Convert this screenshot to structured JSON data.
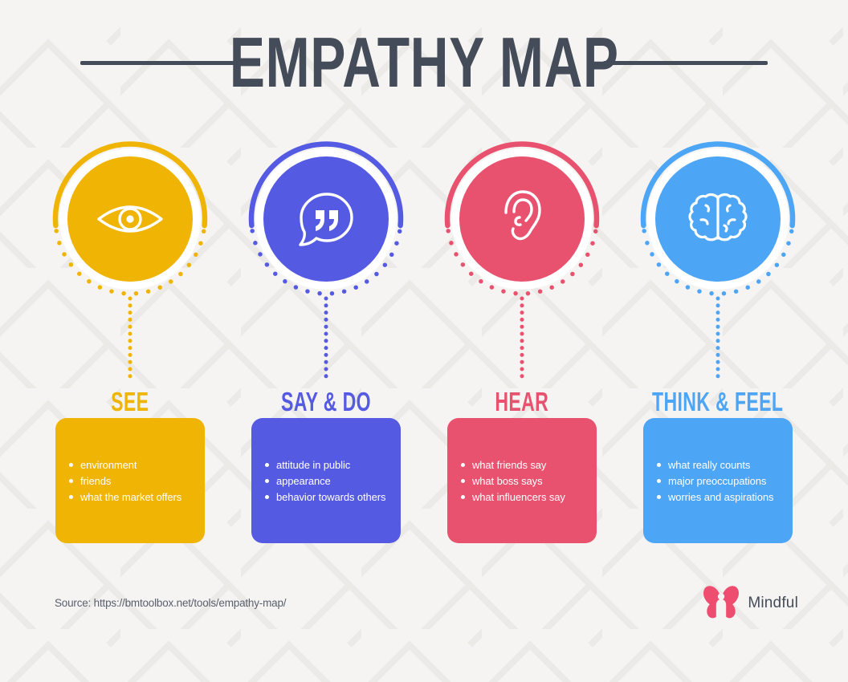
{
  "title": "EMPATHY MAP",
  "colors": {
    "background": "#F5F4F2",
    "pattern": "#EAE9E6",
    "title_text": "#454C59",
    "card_text": "#FFFFFF",
    "source_text": "#59606D",
    "brand_pink": "#EE4D6F"
  },
  "columns": [
    {
      "id": "see",
      "heading": "SEE",
      "accent": "#F0B405",
      "icon": "eye-icon",
      "items": [
        "environment",
        "friends",
        "what the market offers"
      ]
    },
    {
      "id": "say-do",
      "heading": "SAY & DO",
      "accent": "#555AE3",
      "icon": "speech-bubble-icon",
      "items": [
        "attitude in public",
        "appearance",
        "behavior towards others"
      ]
    },
    {
      "id": "hear",
      "heading": "HEAR",
      "accent": "#E8526F",
      "icon": "ear-icon",
      "items": [
        "what friends say",
        "what boss says",
        "what influencers say"
      ]
    },
    {
      "id": "think-feel",
      "heading": "THINK & FEEL",
      "accent": "#4DA5F6",
      "icon": "brain-icon",
      "items": [
        "what really counts",
        "major preoccupations",
        "worries and aspirations"
      ]
    }
  ],
  "footer": {
    "source": "Source: https://bmtoolbox.net/tools/empathy-map/",
    "brand": {
      "name": "Mindful"
    }
  }
}
